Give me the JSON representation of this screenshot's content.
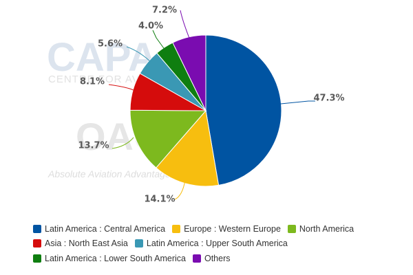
{
  "watermarks": {
    "capa_logo": "CAPA",
    "capa_subtitle": "CENTRE FOR AVIATION",
    "oag_logo": "OAG",
    "oag_tagline": "Absolute Aviation Advantage"
  },
  "chart_data": {
    "type": "pie",
    "start_angle_deg": 0,
    "direction": "clockwise",
    "slices": [
      {
        "name": "Latin America : Central America",
        "value": 47.3,
        "label": "47.3%",
        "color": "#0054A2"
      },
      {
        "name": "Europe : Western Europe",
        "value": 14.1,
        "label": "14.1%",
        "color": "#F7BE0F"
      },
      {
        "name": "North America",
        "value": 13.7,
        "label": "13.7%",
        "color": "#7DB91E"
      },
      {
        "name": "Asia : North East Asia",
        "value": 8.1,
        "label": "8.1%",
        "color": "#D50C0C"
      },
      {
        "name": "Latin America : Upper South America",
        "value": 5.6,
        "label": "5.6%",
        "color": "#3A98B4"
      },
      {
        "name": "Latin America : Lower South America",
        "value": 4.0,
        "label": "4.0%",
        "color": "#0F7E10"
      },
      {
        "name": "Others",
        "value": 7.2,
        "label": "7.2%",
        "color": "#7A0CB0"
      }
    ],
    "legend": {
      "placement": "bottom",
      "rows": [
        [
          0,
          1,
          2
        ],
        [
          3,
          4
        ],
        [
          5,
          6
        ]
      ]
    }
  }
}
